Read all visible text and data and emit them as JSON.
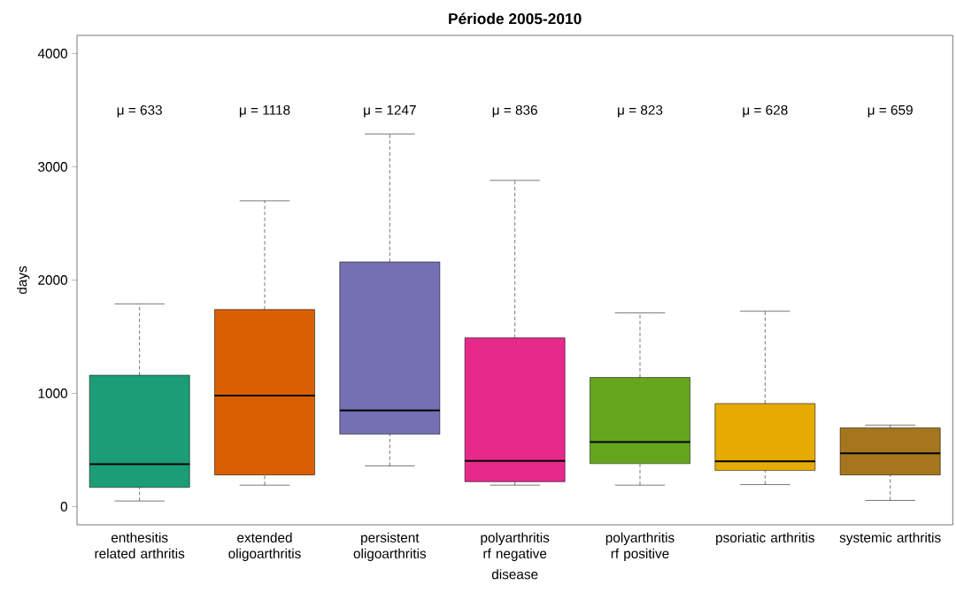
{
  "chart_data": {
    "type": "box",
    "title": "Période 2005-2010",
    "xlabel": "disease",
    "ylabel": "days",
    "categories": [
      "enthesitis related arthritis",
      "extended oligoarthritis",
      "persistent oligoarthritis",
      "polyarthritis rf negative",
      "polyarthritis rf positive",
      "psoriatic arthritis",
      "systemic arthritis"
    ],
    "colors": [
      "#1b9e77",
      "#d95f02",
      "#7570b3",
      "#e7298a",
      "#66a61e",
      "#e6ab02",
      "#a6761d"
    ],
    "boxes": [
      {
        "low": 50,
        "q1": 170,
        "median": 375,
        "q3": 1160,
        "high": 1790
      },
      {
        "low": 190,
        "q1": 280,
        "median": 980,
        "q3": 1740,
        "high": 2700
      },
      {
        "low": 360,
        "q1": 640,
        "median": 850,
        "q3": 2160,
        "high": 3290
      },
      {
        "low": 190,
        "q1": 220,
        "median": 405,
        "q3": 1490,
        "high": 2880
      },
      {
        "low": 190,
        "q1": 380,
        "median": 570,
        "q3": 1140,
        "high": 1710
      },
      {
        "low": 195,
        "q1": 320,
        "median": 400,
        "q3": 910,
        "high": 1725
      },
      {
        "low": 55,
        "q1": 280,
        "median": 470,
        "q3": 695,
        "high": 720
      }
    ],
    "annotations": [
      "μ =  633",
      "μ =  1118",
      "μ =  1247",
      "μ =  836",
      "μ =  823",
      "μ =  628",
      "μ =  659"
    ],
    "ylim": [
      -160,
      4160
    ],
    "yticks": [
      0,
      1000,
      2000,
      3000,
      4000
    ]
  }
}
